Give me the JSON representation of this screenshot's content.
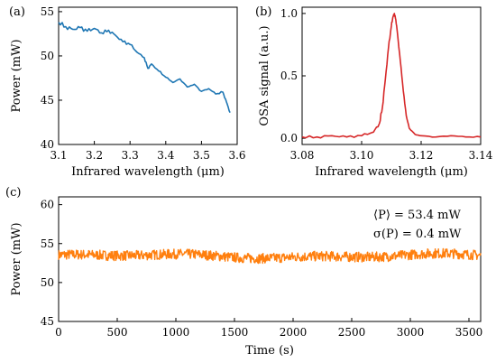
{
  "chart_data": [
    {
      "panel": "(a)",
      "type": "line",
      "xlabel": "Infrared wavelength (μm)",
      "ylabel": "Power (mW)",
      "xlim": [
        3.1,
        3.6
      ],
      "ylim": [
        40,
        55.5
      ],
      "xticks": [
        "3.1",
        "3.2",
        "3.3",
        "3.4",
        "3.5",
        "3.6"
      ],
      "yticks": [
        "40",
        "45",
        "50",
        "55"
      ],
      "color": "#1f77b4",
      "grid": false,
      "series": [
        {
          "x": [
            3.1,
            3.12,
            3.14,
            3.16,
            3.18,
            3.2,
            3.22,
            3.24,
            3.26,
            3.28,
            3.3,
            3.32,
            3.34,
            3.35,
            3.36,
            3.38,
            3.4,
            3.42,
            3.44,
            3.46,
            3.48,
            3.5,
            3.52,
            3.54,
            3.56,
            3.57,
            3.58
          ],
          "y": [
            53.8,
            53.3,
            53.0,
            53.2,
            52.8,
            53.1,
            52.6,
            52.9,
            52.3,
            51.6,
            51.3,
            50.4,
            49.8,
            48.6,
            49.1,
            48.3,
            47.6,
            47.0,
            47.4,
            46.5,
            46.8,
            46.0,
            46.3,
            45.7,
            45.9,
            44.8,
            43.6
          ]
        }
      ]
    },
    {
      "panel": "(b)",
      "type": "line",
      "xlabel": "Infrared wavelength (μm)",
      "ylabel": "OSA signal (a.u.)",
      "xlim": [
        3.08,
        3.14
      ],
      "ylim": [
        -0.05,
        1.05
      ],
      "xticks": [
        "3.08",
        "3.10",
        "3.12",
        "3.14"
      ],
      "yticks": [
        "0.0",
        "0.5",
        "1.0"
      ],
      "color": "#d62728",
      "grid": false,
      "series": [
        {
          "x": [
            3.08,
            3.085,
            3.09,
            3.095,
            3.1,
            3.104,
            3.106,
            3.107,
            3.108,
            3.109,
            3.11,
            3.1105,
            3.111,
            3.1115,
            3.112,
            3.113,
            3.114,
            3.115,
            3.116,
            3.118,
            3.12,
            3.125,
            3.13,
            3.135,
            3.14
          ],
          "y": [
            0.01,
            0.01,
            0.02,
            0.01,
            0.02,
            0.05,
            0.12,
            0.25,
            0.48,
            0.72,
            0.9,
            0.97,
            1.0,
            0.95,
            0.85,
            0.62,
            0.38,
            0.18,
            0.08,
            0.03,
            0.02,
            0.01,
            0.02,
            0.01,
            0.01
          ]
        }
      ]
    },
    {
      "panel": "(c)",
      "type": "line",
      "xlabel": "Time (s)",
      "ylabel": "Power (mW)",
      "xlim": [
        0,
        3600
      ],
      "ylim": [
        45,
        61
      ],
      "xticks": [
        "0",
        "500",
        "1000",
        "1500",
        "2000",
        "2500",
        "3000",
        "3500"
      ],
      "yticks": [
        "45",
        "50",
        "55",
        "60"
      ],
      "color": "#ff7f0e",
      "grid": false,
      "mean": 53.4,
      "std": 0.4,
      "annotations": [
        "⟨P⟩ = 53.4 mW",
        "σ(P) = 0.4 mW"
      ]
    }
  ]
}
